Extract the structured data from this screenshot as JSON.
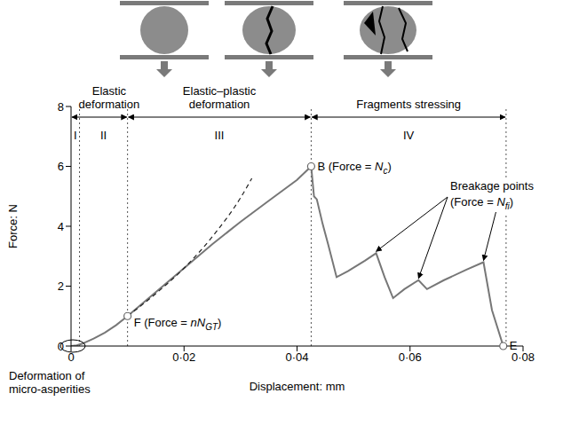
{
  "chart_data": {
    "type": "line",
    "x_label": "Displacement: mm",
    "y_label": "Force: N",
    "xlim": [
      0,
      0.08
    ],
    "xticks": [
      0,
      {
        "value": 0.02,
        "label": "0·02"
      },
      {
        "value": 0.04,
        "label": "0·04"
      },
      {
        "value": 0.06,
        "label": "0·06"
      },
      {
        "value": 0.08,
        "label": "0·08"
      }
    ],
    "ylim": [
      0,
      8
    ],
    "yticks": [
      0,
      2,
      4,
      6,
      8
    ],
    "grid": false,
    "series": [
      {
        "color": "#777777",
        "line_style": "solid",
        "x": [
          0,
          0.001,
          0.002,
          0.004,
          0.006,
          0.008,
          0.01,
          0.015,
          0.02,
          0.025,
          0.03,
          0.035,
          0.04,
          0.0425,
          0.043,
          0.0435,
          0.0445,
          0.0455,
          0.047,
          0.049,
          0.052,
          0.054,
          0.0555,
          0.057,
          0.059,
          0.0615,
          0.063,
          0.066,
          0.07,
          0.073,
          0.0745,
          0.0765
        ],
        "values": [
          0,
          0.02,
          0.08,
          0.25,
          0.45,
          0.7,
          1.0,
          1.8,
          2.6,
          3.4,
          4.15,
          4.85,
          5.55,
          6.0,
          5.0,
          4.9,
          4.1,
          3.4,
          2.3,
          2.5,
          2.85,
          3.1,
          2.3,
          1.6,
          1.9,
          2.2,
          1.9,
          2.2,
          2.55,
          2.8,
          1.2,
          0
        ]
      },
      {
        "color": "#222222",
        "line_style": "dashed",
        "x": [
          0.01,
          0.015,
          0.02,
          0.025,
          0.03,
          0.032
        ],
        "values": [
          1.0,
          1.75,
          2.6,
          3.65,
          4.95,
          5.6
        ]
      }
    ],
    "region_bounds": [
      0,
      0.0015,
      0.01,
      0.0425,
      0.077
    ],
    "region_labels": [
      "I",
      "II",
      "III",
      "IV"
    ],
    "phases": [
      {
        "label": "Elastic deformation",
        "from": 0,
        "to": 0.01
      },
      {
        "label": "Elastic–plastic deformation",
        "from": 0.01,
        "to": 0.0425
      },
      {
        "label": "Fragments stressing",
        "from": 0.0425,
        "to": 0.077
      }
    ],
    "points": [
      {
        "x": 0.01,
        "y": 1.0,
        "parts": [
          {
            "t": "F (Force = "
          },
          {
            "t": "nN",
            "i": true
          },
          {
            "t": "GT",
            "sub": true,
            "i": true
          },
          {
            "t": ")"
          }
        ]
      },
      {
        "x": 0.0425,
        "y": 6.0,
        "parts": [
          {
            "t": "B (Force = "
          },
          {
            "t": "N",
            "i": true
          },
          {
            "t": "c",
            "sub": true,
            "i": true
          },
          {
            "t": ")"
          }
        ]
      },
      {
        "x": 0.0765,
        "y": 0,
        "parts": [
          {
            "t": "E"
          }
        ]
      }
    ],
    "breakage": {
      "lines": [
        [
          {
            "t": "Breakage points"
          }
        ],
        [
          {
            "t": "(Force = "
          },
          {
            "t": "N",
            "i": true
          },
          {
            "t": "fi",
            "sub": true,
            "i": true
          },
          {
            "t": ")"
          }
        ]
      ],
      "x": [
        0.054,
        0.0615,
        0.073
      ],
      "y": [
        3.1,
        2.2,
        2.8
      ]
    },
    "origin_note": "Deformation of micro-asperities"
  }
}
